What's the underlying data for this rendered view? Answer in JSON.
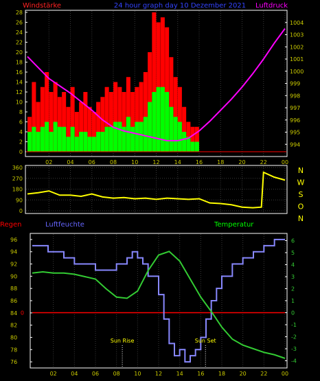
{
  "header": {
    "left_label": "Windstärke",
    "title": "24 hour graph day  10 Dezember 2021",
    "right_label": "Luftdruck"
  },
  "colors": {
    "wind_gust": "#ff0000",
    "wind_avg": "#00ff00",
    "pressure": "#ff00ff",
    "direction": "#ffff00",
    "humidity": "#8888ff",
    "temperature": "#33cc33",
    "rain": "#ff0000",
    "axis": "#ffffff",
    "grid": "#3a3a3a",
    "tick_text": "#cccc00",
    "title_text": "#3344ff",
    "wind_label": "#ff2222",
    "pressure_label": "#ff00ff",
    "direction_label": "#ffff00",
    "regen_label": "#ff0000",
    "humidity_label": "#6666ff",
    "temperature_label": "#00ff00",
    "sun_label": "#ffff00"
  },
  "x_ticks": [
    "02",
    "04",
    "06",
    "08",
    "10",
    "12",
    "14",
    "16",
    "18",
    "20",
    "22",
    "00"
  ],
  "chart_data": [
    {
      "type": "bar",
      "name": "wind_and_pressure",
      "left_axis": {
        "label": "Windstärke",
        "ylim": [
          0,
          28
        ],
        "ticks": [
          0,
          2,
          4,
          6,
          8,
          10,
          12,
          14,
          16,
          18,
          20,
          22,
          24,
          26,
          28
        ]
      },
      "right_axis": {
        "label": "Luftdruck",
        "ylim": [
          993,
          1005
        ],
        "ticks": [
          994,
          995,
          996,
          997,
          998,
          999,
          1000,
          1001,
          1002,
          1003,
          1004
        ]
      },
      "wind_gust": {
        "x": [
          0.2,
          0.6,
          1.0,
          1.4,
          1.8,
          2.2,
          2.6,
          3.0,
          3.4,
          3.8,
          4.2,
          4.6,
          5.0,
          5.4,
          5.8,
          6.2,
          6.6,
          7.0,
          7.4,
          7.8,
          8.2,
          8.6,
          9.0,
          9.4,
          9.8,
          10.2,
          10.6,
          11.0,
          11.4,
          11.8,
          12.2,
          12.6,
          13.0,
          13.4,
          13.8,
          14.2,
          14.6,
          15.0,
          15.4,
          15.8
        ],
        "values": [
          7,
          14,
          10,
          13,
          16,
          12,
          14,
          11,
          12,
          9,
          13,
          8,
          10,
          12,
          9,
          8,
          10,
          11,
          13,
          12,
          14,
          13,
          12,
          15,
          12,
          13,
          14,
          16,
          20,
          28,
          26,
          27,
          25,
          19,
          15,
          13,
          9,
          6,
          5,
          5
        ]
      },
      "wind_avg": {
        "x": [
          0.2,
          0.6,
          1.0,
          1.4,
          1.8,
          2.2,
          2.6,
          3.0,
          3.4,
          3.8,
          4.2,
          4.6,
          5.0,
          5.4,
          5.8,
          6.2,
          6.6,
          7.0,
          7.4,
          7.8,
          8.2,
          8.6,
          9.0,
          9.4,
          9.8,
          10.2,
          10.6,
          11.0,
          11.4,
          11.8,
          12.2,
          12.6,
          13.0,
          13.4,
          13.8,
          14.2,
          14.6,
          15.0,
          15.4,
          15.8
        ],
        "values": [
          4,
          5,
          4,
          5,
          6,
          4,
          6,
          5,
          5,
          3,
          5,
          3,
          4,
          4,
          3,
          3,
          4,
          4,
          5,
          5,
          6,
          6,
          5,
          7,
          5,
          6,
          6,
          7,
          10,
          12,
          13,
          13,
          12,
          9,
          7,
          6,
          4,
          3,
          2,
          2
        ]
      },
      "pressure": {
        "x": [
          0,
          1,
          2,
          3,
          4,
          5,
          6,
          7,
          8,
          9,
          10,
          11,
          12,
          13,
          14,
          15,
          16,
          17,
          18,
          19,
          20,
          21,
          22,
          23,
          24
        ],
        "values": [
          1001.2,
          1000.3,
          999.4,
          998.8,
          998.2,
          997.5,
          996.8,
          996.0,
          995.4,
          995.1,
          994.9,
          994.7,
          994.5,
          994.3,
          994.3,
          994.5,
          995.1,
          995.9,
          996.8,
          997.7,
          998.7,
          999.8,
          1001.0,
          1002.3,
          1003.5
        ]
      }
    },
    {
      "type": "line",
      "name": "wind_direction",
      "ylim": [
        0,
        360
      ],
      "ticks": [
        0,
        90,
        180,
        270,
        360
      ],
      "compass": [
        "N",
        "W",
        "S",
        "O",
        "N"
      ],
      "x": [
        0,
        1,
        2,
        3,
        4,
        5,
        6,
        7,
        8,
        9,
        10,
        11,
        12,
        13,
        14,
        15,
        16,
        17,
        18,
        19,
        20,
        21,
        21.8,
        22,
        23,
        24
      ],
      "values": [
        140,
        150,
        165,
        130,
        130,
        120,
        140,
        115,
        105,
        110,
        100,
        105,
        95,
        105,
        100,
        95,
        100,
        65,
        60,
        50,
        30,
        25,
        30,
        320,
        280,
        255
      ]
    },
    {
      "type": "line",
      "name": "humidity_temperature_rain",
      "labels": {
        "rain": "Regen",
        "humidity": "Luftfeuchte",
        "temperature": "Temperatur"
      },
      "left_axis": {
        "ylim": [
          75,
          97
        ],
        "ticks": [
          76,
          78,
          80,
          82,
          84,
          86,
          88,
          90,
          92,
          94,
          96
        ]
      },
      "right_axis": {
        "ylim": [
          -4.6,
          6.6
        ],
        "ticks": [
          -4,
          -3,
          -2,
          -1,
          0,
          1,
          2,
          3,
          4,
          5,
          6
        ]
      },
      "rain_axis_label": "0",
      "humidity": {
        "x": [
          0,
          1,
          1.5,
          2,
          3,
          4,
          5,
          6,
          7,
          8,
          9,
          9.5,
          10,
          10.5,
          11,
          12,
          12.5,
          13,
          13.5,
          14,
          14.5,
          15,
          15.5,
          16,
          16.5,
          17,
          17.5,
          18,
          19,
          20,
          21,
          22,
          23,
          24
        ],
        "values": [
          95,
          95,
          94,
          94,
          93,
          92,
          92,
          91,
          91,
          92,
          93,
          94,
          93,
          92,
          90,
          87,
          83,
          79,
          77,
          78,
          76,
          77,
          78,
          80,
          83,
          86,
          88,
          90,
          92,
          93,
          94,
          95,
          96,
          96
        ]
      },
      "temperature": {
        "x": [
          0,
          1,
          2,
          3,
          4,
          5,
          6,
          7,
          8,
          9,
          10,
          11,
          12,
          13,
          14,
          15,
          16,
          17,
          18,
          19,
          20,
          21,
          22,
          23,
          24
        ],
        "values": [
          3.3,
          3.4,
          3.3,
          3.3,
          3.2,
          3.0,
          2.8,
          2.0,
          1.3,
          1.2,
          1.8,
          3.5,
          4.8,
          5.1,
          4.3,
          2.8,
          1.3,
          0.1,
          -1.2,
          -2.2,
          -2.7,
          -3.0,
          -3.3,
          -3.5,
          -3.8
        ]
      },
      "rain": {
        "x": [
          0,
          24
        ],
        "values": [
          0,
          0
        ]
      },
      "annotations": [
        {
          "label": "Sun Rise",
          "x": 8.55
        },
        {
          "label": "Sun Set",
          "x": 16.45
        }
      ]
    }
  ]
}
